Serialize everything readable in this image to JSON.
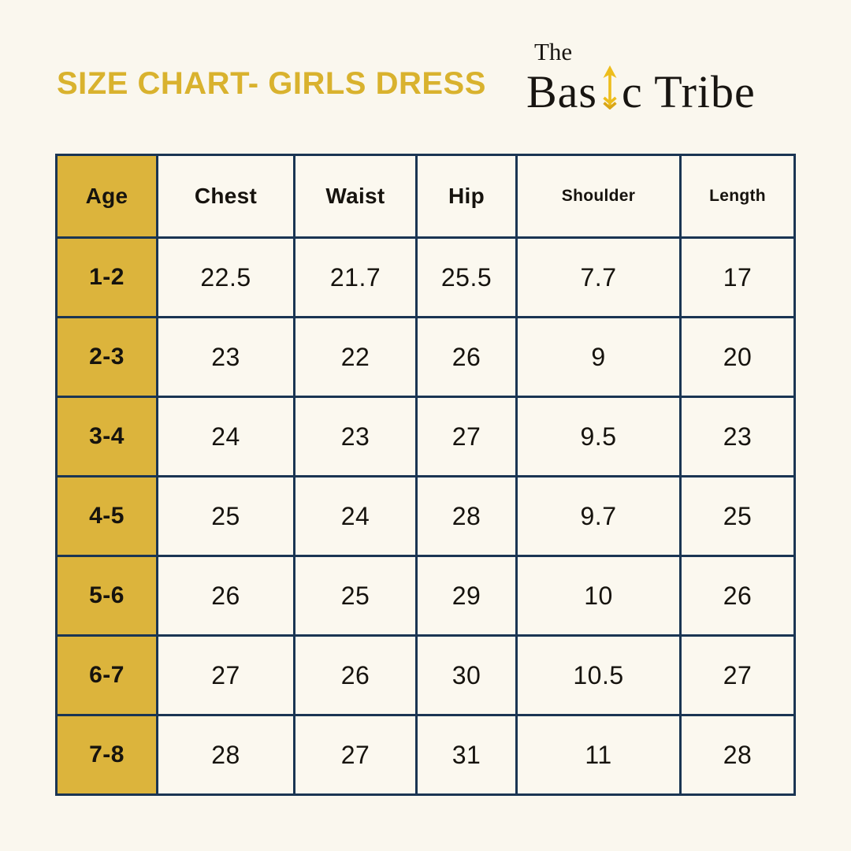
{
  "header": {
    "title": "SIZE CHART- GIRLS DRESS",
    "title_color": "#D9B22E"
  },
  "logo": {
    "the": "The",
    "brand_prefix": "Bas",
    "brand_suffix": "c Tribe",
    "arrow_icon": "arrow-up-icon",
    "arrow_color": "#EDBD1C",
    "text_color": "#181511"
  },
  "colors": {
    "background": "#FAF7EE",
    "accent_gold": "#DCB43C",
    "table_border_navy": "#1A3553",
    "text_dark": "#16130E"
  },
  "chart_data": {
    "type": "table",
    "title": "SIZE CHART- GIRLS DRESS",
    "columns": [
      "Age",
      "Chest",
      "Waist",
      "Hip",
      "Shoulder",
      "Length"
    ],
    "rows": [
      [
        "1-2",
        "22.5",
        "21.7",
        "25.5",
        "7.7",
        "17"
      ],
      [
        "2-3",
        "23",
        "22",
        "26",
        "9",
        "20"
      ],
      [
        "3-4",
        "24",
        "23",
        "27",
        "9.5",
        "23"
      ],
      [
        "4-5",
        "25",
        "24",
        "28",
        "9.7",
        "25"
      ],
      [
        "5-6",
        "26",
        "25",
        "29",
        "10",
        "26"
      ],
      [
        "6-7",
        "27",
        "26",
        "30",
        "10.5",
        "27"
      ],
      [
        "7-8",
        "28",
        "27",
        "31",
        "11",
        "28"
      ]
    ],
    "layout": {
      "highlighted_column": "Age",
      "grid": true
    }
  }
}
